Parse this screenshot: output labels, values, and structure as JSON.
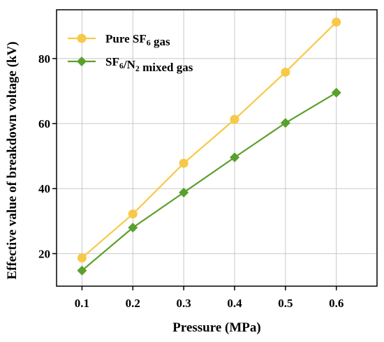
{
  "chart_data": {
    "type": "line",
    "x": [
      0.1,
      0.2,
      0.3,
      0.4,
      0.5,
      0.6
    ],
    "series": [
      {
        "name_parts": [
          {
            "text": "Pure SF",
            "sub": false
          },
          {
            "text": "6",
            "sub": true
          },
          {
            "text": " gas",
            "sub": false
          }
        ],
        "values": [
          18.7,
          32.2,
          47.8,
          61.3,
          75.8,
          91.2
        ],
        "color": "#f7c948",
        "marker": "circle"
      },
      {
        "name_parts": [
          {
            "text": "SF",
            "sub": false
          },
          {
            "text": "6",
            "sub": true
          },
          {
            "text": "/N",
            "sub": false
          },
          {
            "text": "2",
            "sub": true
          },
          {
            "text": " mixed gas",
            "sub": false
          }
        ],
        "values": [
          14.8,
          28.0,
          38.8,
          49.6,
          60.2,
          69.5
        ],
        "color": "#5aa02c",
        "marker": "diamond"
      }
    ],
    "xlabel": "Pressure (MPa)",
    "ylabel": "Effective value of breakdown voltage (kV)",
    "xlim": [
      0.05,
      0.68
    ],
    "ylim": [
      10,
      95
    ],
    "xticks": [
      0.1,
      0.2,
      0.3,
      0.4,
      0.5,
      0.6
    ],
    "xtick_labels": [
      "0.1",
      "0.2",
      "0.3",
      "0.4",
      "0.5",
      "0.6"
    ],
    "yticks": [
      20,
      40,
      60,
      80
    ],
    "ytick_labels": [
      "20",
      "40",
      "60",
      "80"
    ],
    "grid": true,
    "legend_position": "top-left"
  }
}
